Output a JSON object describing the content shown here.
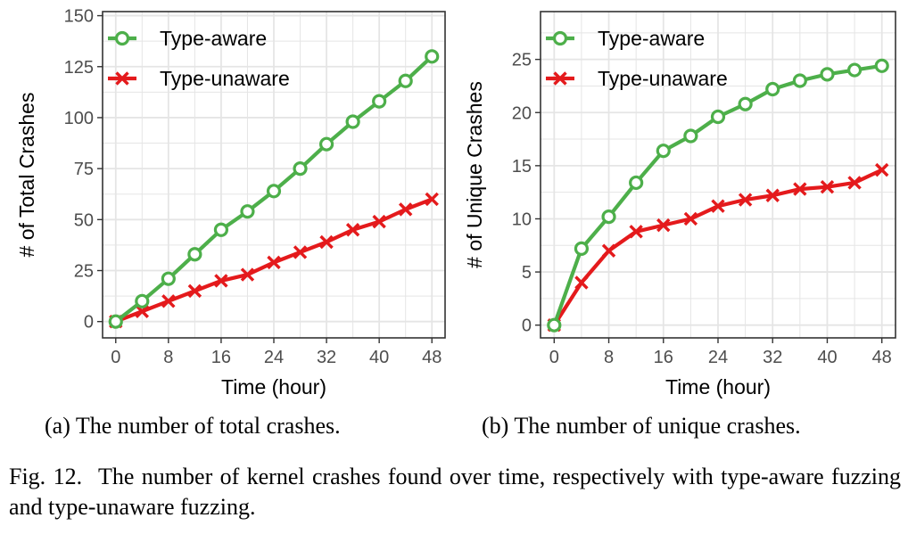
{
  "colors": {
    "type_aware": "#4daf4a",
    "type_unaware": "#e41a1c",
    "grid": "#e5e5e5",
    "axis_text": "#4d4d4d"
  },
  "chart_data": [
    {
      "type": "line",
      "xlabel": "Time (hour)",
      "ylabel": "# of Total Crashes",
      "xlim": [
        -2,
        50
      ],
      "ylim": [
        -8,
        152
      ],
      "xticks": [
        0,
        8,
        16,
        24,
        32,
        40,
        48
      ],
      "yticks": [
        0,
        25,
        50,
        75,
        100,
        125,
        150
      ],
      "grid": true,
      "legend_position": "top-left",
      "series": [
        {
          "name": "Type-aware",
          "marker": "circle",
          "x": [
            0,
            4,
            8,
            12,
            16,
            20,
            24,
            28,
            32,
            36,
            40,
            44,
            48
          ],
          "values": [
            0,
            10,
            21,
            33,
            45,
            54,
            64,
            75,
            87,
            98,
            108,
            118,
            130
          ]
        },
        {
          "name": "Type-unaware",
          "marker": "x",
          "x": [
            0,
            4,
            8,
            12,
            16,
            20,
            24,
            28,
            32,
            36,
            40,
            44,
            48
          ],
          "values": [
            0,
            5,
            10,
            15,
            20,
            23,
            29,
            34,
            39,
            45,
            49,
            55,
            60
          ]
        }
      ]
    },
    {
      "type": "line",
      "xlabel": "Time (hour)",
      "ylabel": "# of Unique Crashes",
      "xlim": [
        -2,
        50
      ],
      "ylim": [
        -1.2,
        29.5
      ],
      "xticks": [
        0,
        8,
        16,
        24,
        32,
        40,
        48
      ],
      "yticks": [
        0,
        5,
        10,
        15,
        20,
        25
      ],
      "grid": true,
      "legend_position": "top-left",
      "series": [
        {
          "name": "Type-aware",
          "marker": "circle",
          "x": [
            0,
            4,
            8,
            12,
            16,
            20,
            24,
            28,
            32,
            36,
            40,
            44,
            48
          ],
          "values": [
            0,
            7.2,
            10.2,
            13.4,
            16.4,
            17.8,
            19.6,
            20.8,
            22.2,
            23.0,
            23.6,
            24.0,
            24.4
          ]
        },
        {
          "name": "Type-unaware",
          "marker": "x",
          "x": [
            0,
            4,
            8,
            12,
            16,
            20,
            24,
            28,
            32,
            36,
            40,
            44,
            48
          ],
          "values": [
            0,
            4.0,
            7.0,
            8.8,
            9.4,
            10.0,
            11.2,
            11.8,
            12.2,
            12.8,
            13.0,
            13.4,
            14.6
          ]
        }
      ]
    }
  ],
  "captions": {
    "sub_a": "(a) The number of total crashes.",
    "sub_b": "(b) The number of unique crashes.",
    "figure_label": "Fig. 12.",
    "figure_text": "The number of kernel crashes found over time, respectively with type-aware fuzzing and type-unaware fuzzing."
  }
}
